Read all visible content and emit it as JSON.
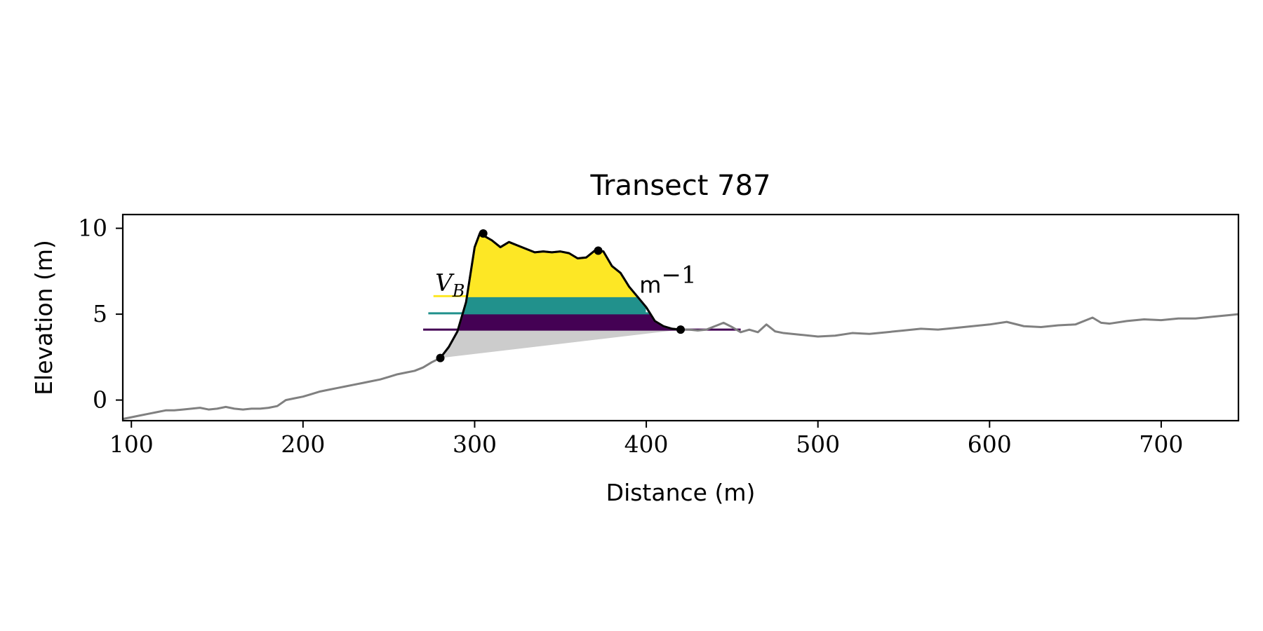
{
  "chart_data": {
    "type": "area",
    "title": "Transect 787",
    "xlabel": "Distance (m)",
    "ylabel": "Elevation (m)",
    "xlim": [
      95,
      745
    ],
    "ylim": [
      -1.2,
      10.8
    ],
    "xticks": [
      100,
      200,
      300,
      400,
      500,
      600,
      700
    ],
    "xtick_labels": [
      "100",
      "200",
      "300",
      "400",
      "500",
      "600",
      "700"
    ],
    "yticks": [
      0,
      5,
      10
    ],
    "ytick_labels": [
      "0",
      "5",
      "10"
    ],
    "grid": false,
    "colors": {
      "profile": "#808080",
      "dune_outline": "#000000",
      "base_wedge": "#cccccc",
      "band_top": "#fde725",
      "band_middle": "#21918c",
      "band_bottom": "#440154"
    },
    "profile": {
      "x": [
        95,
        100,
        105,
        110,
        115,
        120,
        125,
        130,
        135,
        140,
        145,
        150,
        155,
        160,
        165,
        170,
        175,
        180,
        185,
        190,
        195,
        200,
        205,
        210,
        215,
        220,
        225,
        230,
        235,
        240,
        245,
        250,
        255,
        260,
        265,
        270,
        275,
        280,
        285,
        290,
        295,
        300,
        303,
        310,
        315,
        320,
        325,
        330,
        335,
        340,
        345,
        350,
        355,
        360,
        365,
        370,
        375,
        380,
        385,
        390,
        395,
        400,
        405,
        410,
        415,
        420,
        425,
        430,
        435,
        440,
        445,
        450,
        455,
        460,
        465,
        470,
        475,
        480,
        490,
        500,
        510,
        520,
        530,
        540,
        550,
        560,
        570,
        580,
        590,
        600,
        610,
        620,
        630,
        640,
        650,
        660,
        665,
        670,
        680,
        690,
        700,
        710,
        720,
        730,
        740,
        745
      ],
      "y": [
        -1.1,
        -1.0,
        -0.9,
        -0.8,
        -0.7,
        -0.6,
        -0.6,
        -0.55,
        -0.5,
        -0.45,
        -0.55,
        -0.5,
        -0.4,
        -0.5,
        -0.55,
        -0.5,
        -0.5,
        -0.45,
        -0.35,
        0.0,
        0.1,
        0.2,
        0.35,
        0.5,
        0.6,
        0.7,
        0.8,
        0.9,
        1.0,
        1.1,
        1.2,
        1.35,
        1.5,
        1.6,
        1.7,
        1.9,
        2.2,
        2.45,
        3.1,
        4.0,
        5.7,
        8.9,
        9.7,
        9.3,
        8.9,
        9.2,
        9.0,
        8.8,
        8.6,
        8.65,
        8.6,
        8.65,
        8.55,
        8.25,
        8.3,
        8.7,
        8.65,
        7.8,
        7.4,
        6.6,
        6.0,
        5.4,
        4.6,
        4.3,
        4.15,
        4.1,
        4.1,
        4.05,
        4.1,
        4.3,
        4.5,
        4.25,
        3.95,
        4.1,
        3.95,
        4.4,
        4.0,
        3.9,
        3.8,
        3.7,
        3.75,
        3.9,
        3.85,
        3.95,
        4.05,
        4.15,
        4.1,
        4.2,
        4.3,
        4.4,
        4.55,
        4.3,
        4.25,
        4.35,
        4.4,
        4.8,
        4.5,
        4.45,
        4.6,
        4.7,
        4.65,
        4.75,
        4.75,
        4.85,
        4.95,
        5.0
      ]
    },
    "dune": {
      "toe": {
        "x": 280,
        "y": 2.45
      },
      "crest": {
        "x": 305,
        "y": 9.7
      },
      "secondary_crest": {
        "x": 372,
        "y": 8.7
      },
      "heel": {
        "x": 420,
        "y": 4.1
      }
    },
    "bands": [
      {
        "color": "band_bottom",
        "y_bottom": 4.1,
        "y_top": 5.05,
        "x_start": 270,
        "x_end": 455
      },
      {
        "color": "band_middle",
        "y_bottom": 5.05,
        "y_top": 6.05,
        "x_start": 273,
        "x_end": 400
      },
      {
        "color": "band_top",
        "y_bottom": 6.05,
        "y_top": 10.0,
        "x_start": 276,
        "x_end": 400
      }
    ],
    "annotations": {
      "volume_symbol": "V",
      "volume_subscript": "B",
      "volume_unit": "m",
      "volume_unit_exponent": "−1"
    }
  }
}
